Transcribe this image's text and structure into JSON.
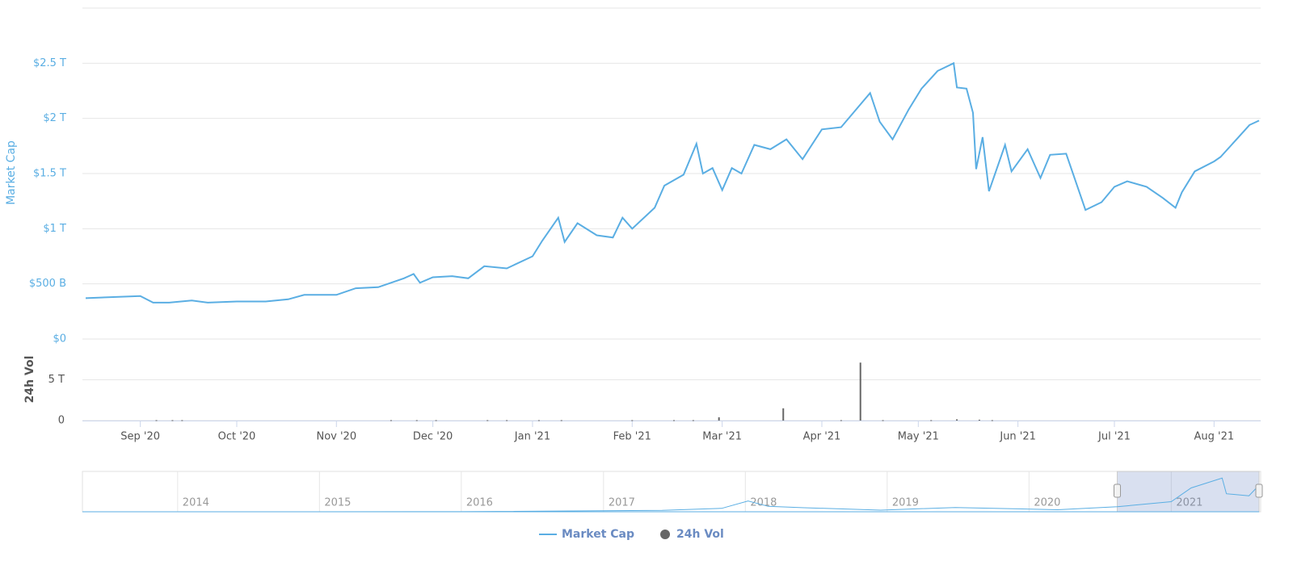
{
  "chart_data": {
    "type": "line",
    "y_label": "Market Cap",
    "y2_label": "24h Vol",
    "xlim": [
      "2020-08-15",
      "2021-08-15"
    ],
    "xticks": [
      {
        "value": "2020-09-01",
        "label": "Sep '20"
      },
      {
        "value": "2020-10-01",
        "label": "Oct '20"
      },
      {
        "value": "2020-11-01",
        "label": "Nov '20"
      },
      {
        "value": "2020-12-01",
        "label": "Dec '20"
      },
      {
        "value": "2021-01-01",
        "label": "Jan '21"
      },
      {
        "value": "2021-02-01",
        "label": "Feb '21"
      },
      {
        "value": "2021-03-01",
        "label": "Mar '21"
      },
      {
        "value": "2021-04-01",
        "label": "Apr '21"
      },
      {
        "value": "2021-05-01",
        "label": "May '21"
      },
      {
        "value": "2021-06-01",
        "label": "Jun '21"
      },
      {
        "value": "2021-07-01",
        "label": "Jul '21"
      },
      {
        "value": "2021-08-01",
        "label": "Aug '21"
      }
    ],
    "ylim": [
      0,
      3000000000000.0
    ],
    "yticks": [
      {
        "value": 0,
        "label": "$0"
      },
      {
        "value": 500000000000.0,
        "label": "$500 B"
      },
      {
        "value": 1000000000000.0,
        "label": "$1 T"
      },
      {
        "value": 1500000000000.0,
        "label": "$1.5 T"
      },
      {
        "value": 2000000000000.0,
        "label": "$2 T"
      },
      {
        "value": 2500000000000.0,
        "label": "$2.5 T"
      }
    ],
    "y2lim": [
      0,
      9000000000000.0
    ],
    "y2ticks": [
      0,
      {
        "value": 5000000000000.0,
        "label": "5 T"
      }
    ],
    "grid": true,
    "legend": "bottom",
    "series": [
      {
        "name": "Market Cap",
        "color": "#5aaee3",
        "x": [
          "2020-08-15",
          "2020-09-01",
          "2020-09-05",
          "2020-09-10",
          "2020-09-17",
          "2020-09-22",
          "2020-10-01",
          "2020-10-10",
          "2020-10-17",
          "2020-10-22",
          "2020-11-01",
          "2020-11-07",
          "2020-11-14",
          "2020-11-22",
          "2020-11-25",
          "2020-11-27",
          "2020-12-01",
          "2020-12-07",
          "2020-12-12",
          "2020-12-17",
          "2020-12-24",
          "2021-01-01",
          "2021-01-04",
          "2021-01-09",
          "2021-01-11",
          "2021-01-15",
          "2021-01-21",
          "2021-01-26",
          "2021-01-29",
          "2021-02-01",
          "2021-02-08",
          "2021-02-11",
          "2021-02-17",
          "2021-02-21",
          "2021-02-23",
          "2021-02-26",
          "2021-03-01",
          "2021-03-04",
          "2021-03-07",
          "2021-03-11",
          "2021-03-16",
          "2021-03-21",
          "2021-03-26",
          "2021-04-01",
          "2021-04-07",
          "2021-04-16",
          "2021-04-19",
          "2021-04-23",
          "2021-04-28",
          "2021-05-02",
          "2021-05-07",
          "2021-05-12",
          "2021-05-13",
          "2021-05-16",
          "2021-05-18",
          "2021-05-19",
          "2021-05-21",
          "2021-05-23",
          "2021-05-28",
          "2021-05-30",
          "2021-06-04",
          "2021-06-08",
          "2021-06-11",
          "2021-06-16",
          "2021-06-22",
          "2021-06-27",
          "2021-07-01",
          "2021-07-05",
          "2021-07-11",
          "2021-07-16",
          "2021-07-20",
          "2021-07-22",
          "2021-07-26",
          "2021-08-01",
          "2021-08-03",
          "2021-08-08",
          "2021-08-12",
          "2021-08-15"
        ],
        "values": [
          370000000000.0,
          390000000000.0,
          330000000000.0,
          330000000000.0,
          350000000000.0,
          330000000000.0,
          340000000000.0,
          340000000000.0,
          360000000000.0,
          400000000000.0,
          400000000000.0,
          460000000000.0,
          470000000000.0,
          550000000000.0,
          590000000000.0,
          510000000000.0,
          560000000000.0,
          570000000000.0,
          550000000000.0,
          660000000000.0,
          640000000000.0,
          750000000000.0,
          890000000000.0,
          1100000000000.0,
          880000000000.0,
          1050000000000.0,
          940000000000.0,
          920000000000.0,
          1100000000000.0,
          1000000000000.0,
          1190000000000.0,
          1390000000000.0,
          1490000000000.0,
          1770000000000.0,
          1500000000000.0,
          1550000000000.0,
          1350000000000.0,
          1550000000000.0,
          1500000000000.0,
          1760000000000.0,
          1720000000000.0,
          1810000000000.0,
          1630000000000.0,
          1900000000000.0,
          1920000000000.0,
          2230000000000.0,
          1970000000000.0,
          1810000000000.0,
          2080000000000.0,
          2270000000000.0,
          2430000000000.0,
          2500000000000.0,
          2280000000000.0,
          2270000000000.0,
          2050000000000.0,
          1540000000000.0,
          1830000000000.0,
          1340000000000.0,
          1760000000000.0,
          1520000000000.0,
          1720000000000.0,
          1460000000000.0,
          1670000000000.0,
          1680000000000.0,
          1170000000000.0,
          1240000000000.0,
          1380000000000.0,
          1430000000000.0,
          1380000000000.0,
          1280000000000.0,
          1190000000000.0,
          1330000000000.0,
          1520000000000.0,
          1610000000000.0,
          1650000000000.0,
          1810000000000.0,
          1940000000000.0,
          1980000000000.0
        ]
      },
      {
        "name": "24h Vol",
        "color": "#666666",
        "type": "bar",
        "axis": "y2",
        "x": [
          "2020-09-06",
          "2020-09-11",
          "2020-09-14",
          "2020-11-18",
          "2020-11-26",
          "2020-12-02",
          "2020-12-18",
          "2020-12-24",
          "2021-01-03",
          "2021-01-10",
          "2021-02-01",
          "2021-02-14",
          "2021-02-20",
          "2021-02-28",
          "2021-03-20",
          "2021-04-07",
          "2021-04-13",
          "2021-04-20",
          "2021-05-05",
          "2021-05-13",
          "2021-05-20",
          "2021-05-24"
        ],
        "values": [
          50000000000.0,
          50000000000.0,
          50000000000.0,
          50000000000.0,
          50000000000.0,
          50000000000.0,
          50000000000.0,
          50000000000.0,
          50000000000.0,
          50000000000.0,
          50000000000.0,
          50000000000.0,
          50000000000.0,
          400000000000.0,
          1500000000000.0,
          50000000000.0,
          7100000000000.0,
          50000000000.0,
          50000000000.0,
          150000000000.0,
          100000000000.0,
          50000000000.0
        ]
      }
    ],
    "navigator": {
      "color": "#5aaee3",
      "xlim": [
        "2013-05-01",
        "2021-08-15"
      ],
      "xticks": [
        {
          "value": "2014-01-01",
          "label": "2014"
        },
        {
          "value": "2015-01-01",
          "label": "2015"
        },
        {
          "value": "2016-01-01",
          "label": "2016"
        },
        {
          "value": "2017-01-01",
          "label": "2017"
        },
        {
          "value": "2018-01-01",
          "label": "2018"
        },
        {
          "value": "2019-01-01",
          "label": "2019"
        },
        {
          "value": "2020-01-01",
          "label": "2020"
        },
        {
          "value": "2021-01-01",
          "label": "2021"
        }
      ],
      "x": [
        "2013-05-01",
        "2016-01-01",
        "2017-06-01",
        "2017-11-01",
        "2018-01-08",
        "2018-03-01",
        "2018-06-01",
        "2018-12-15",
        "2019-06-25",
        "2020-03-15",
        "2020-08-15",
        "2021-01-01",
        "2021-02-21",
        "2021-05-12",
        "2021-05-23",
        "2021-07-20",
        "2021-08-15"
      ],
      "values": [
        1000000000.0,
        7000000000.0,
        100000000000.0,
        250000000000.0,
        800000000000.0,
        400000000000.0,
        300000000000.0,
        120000000000.0,
        320000000000.0,
        150000000000.0,
        370000000000.0,
        750000000000.0,
        1770000000000.0,
        2500000000000.0,
        1340000000000.0,
        1190000000000.0,
        1980000000000.0
      ]
    }
  }
}
